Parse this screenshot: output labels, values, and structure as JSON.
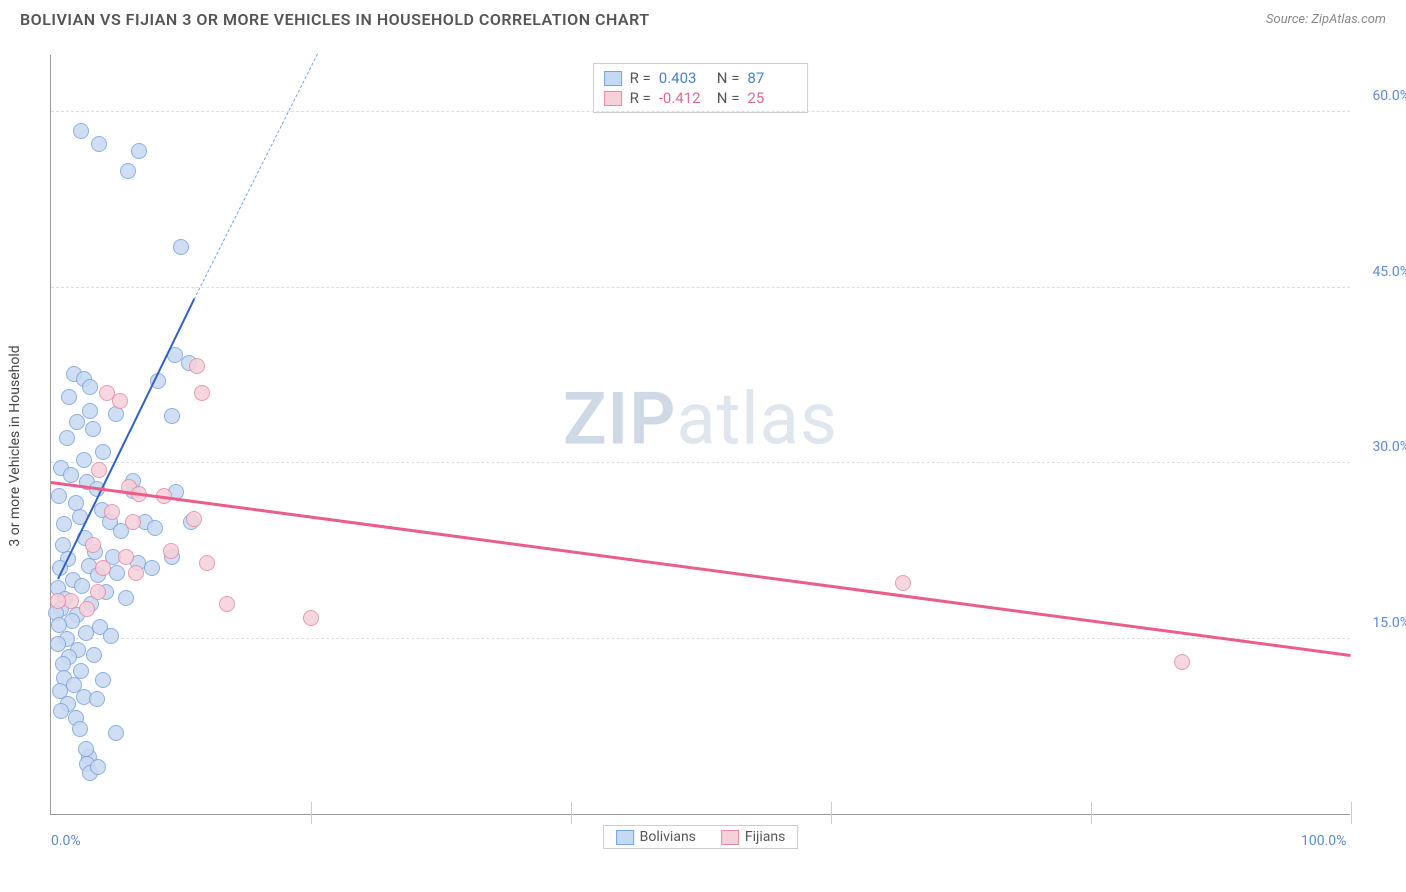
{
  "title": "BOLIVIAN VS FIJIAN 3 OR MORE VEHICLES IN HOUSEHOLD CORRELATION CHART",
  "source": "Source: ZipAtlas.com",
  "ylabel": "3 or more Vehicles in Household",
  "watermark_left": "ZIP",
  "watermark_right": "atlas",
  "chart": {
    "type": "scatter",
    "xlim": [
      0,
      100
    ],
    "ylim": [
      0,
      65
    ],
    "yticks": [
      {
        "v": 15,
        "label": "15.0%"
      },
      {
        "v": 30,
        "label": "30.0%"
      },
      {
        "v": 45,
        "label": "45.0%"
      },
      {
        "v": 60,
        "label": "60.0%"
      }
    ],
    "xticks": [
      {
        "v": 0,
        "label": "0.0%"
      },
      {
        "v": 100,
        "label": "100.0%"
      }
    ],
    "xgrid": [
      20,
      40,
      60,
      80,
      100
    ],
    "background_color": "#ffffff",
    "grid_color": "#dddddd",
    "marker_radius": 8,
    "series": [
      {
        "name": "Bolivians",
        "fill": "#c7d9f2",
        "stroke": "#7aa3de",
        "R": "0.403",
        "N": "87",
        "stat_color": "#4a7fd1",
        "trend": {
          "x1": 0.5,
          "y1": 20,
          "x2": 11,
          "y2": 44,
          "color": "#2f61c4",
          "width": 2
        },
        "trend_dash": {
          "x1": 11,
          "y1": 44,
          "x2": 20.5,
          "y2": 65,
          "color": "#7aa3de"
        },
        "points": [
          [
            2.3,
            58.4
          ],
          [
            3.7,
            57.3
          ],
          [
            6.8,
            56.7
          ],
          [
            5.9,
            55.0
          ],
          [
            10.0,
            48.5
          ],
          [
            9.5,
            39.3
          ],
          [
            10.6,
            38.6
          ],
          [
            8.2,
            37.0
          ],
          [
            1.8,
            37.6
          ],
          [
            2.5,
            37.2
          ],
          [
            1.4,
            35.7
          ],
          [
            3.0,
            36.5
          ],
          [
            9.3,
            34.0
          ],
          [
            3.0,
            34.5
          ],
          [
            5.0,
            34.2
          ],
          [
            2.0,
            33.5
          ],
          [
            3.2,
            32.9
          ],
          [
            1.2,
            32.2
          ],
          [
            4.0,
            31.0
          ],
          [
            2.5,
            30.3
          ],
          [
            0.8,
            29.6
          ],
          [
            1.5,
            29.0
          ],
          [
            2.8,
            28.4
          ],
          [
            3.5,
            27.8
          ],
          [
            6.3,
            27.6
          ],
          [
            0.6,
            27.2
          ],
          [
            1.9,
            26.6
          ],
          [
            3.9,
            26.0
          ],
          [
            2.2,
            25.4
          ],
          [
            4.5,
            25.0
          ],
          [
            1.0,
            24.8
          ],
          [
            5.4,
            24.2
          ],
          [
            2.6,
            23.6
          ],
          [
            0.9,
            23.0
          ],
          [
            3.4,
            22.4
          ],
          [
            4.8,
            22.0
          ],
          [
            1.3,
            21.8
          ],
          [
            2.9,
            21.2
          ],
          [
            6.7,
            21.5
          ],
          [
            0.7,
            21.0
          ],
          [
            3.6,
            20.4
          ],
          [
            5.1,
            20.6
          ],
          [
            1.7,
            20.0
          ],
          [
            2.4,
            19.5
          ],
          [
            0.5,
            19.3
          ],
          [
            4.2,
            19.0
          ],
          [
            1.1,
            18.4
          ],
          [
            3.1,
            18.0
          ],
          [
            5.8,
            18.5
          ],
          [
            0.8,
            17.5
          ],
          [
            2.0,
            17.0
          ],
          [
            0.4,
            17.2
          ],
          [
            1.6,
            16.5
          ],
          [
            3.8,
            16.0
          ],
          [
            0.6,
            16.2
          ],
          [
            2.7,
            15.5
          ],
          [
            1.2,
            15.0
          ],
          [
            4.6,
            15.2
          ],
          [
            0.5,
            14.5
          ],
          [
            2.1,
            14.0
          ],
          [
            1.4,
            13.4
          ],
          [
            3.3,
            13.6
          ],
          [
            0.9,
            12.8
          ],
          [
            2.3,
            12.2
          ],
          [
            1.0,
            11.6
          ],
          [
            1.8,
            11.0
          ],
          [
            0.7,
            10.5
          ],
          [
            2.5,
            10.0
          ],
          [
            1.3,
            9.4
          ],
          [
            3.5,
            9.8
          ],
          [
            0.8,
            8.8
          ],
          [
            1.9,
            8.2
          ],
          [
            2.2,
            7.3
          ],
          [
            2.9,
            4.9
          ],
          [
            2.8,
            4.3
          ],
          [
            5.0,
            6.9
          ],
          [
            2.7,
            5.6
          ],
          [
            7.8,
            21.0
          ],
          [
            6.3,
            28.5
          ],
          [
            7.2,
            25.0
          ],
          [
            9.3,
            22.0
          ],
          [
            8.0,
            24.5
          ],
          [
            9.6,
            27.5
          ],
          [
            10.8,
            25.0
          ],
          [
            4.0,
            11.5
          ],
          [
            3.0,
            3.5
          ],
          [
            3.6,
            4.0
          ]
        ]
      },
      {
        "name": "Fijians",
        "fill": "#f6d1da",
        "stroke": "#e88aa3",
        "R": "-0.412",
        "N": "25",
        "stat_color": "#e26a8c",
        "trend": {
          "x1": 0,
          "y1": 28.3,
          "x2": 100,
          "y2": 13.5,
          "color": "#ea5f87",
          "width": 2.5
        },
        "points": [
          [
            4.3,
            36.0
          ],
          [
            5.3,
            35.3
          ],
          [
            11.2,
            38.3
          ],
          [
            11.6,
            36.0
          ],
          [
            3.7,
            29.4
          ],
          [
            6.0,
            28.0
          ],
          [
            6.8,
            27.4
          ],
          [
            8.7,
            27.2
          ],
          [
            4.7,
            25.8
          ],
          [
            6.3,
            25.0
          ],
          [
            11.0,
            25.2
          ],
          [
            3.2,
            23.0
          ],
          [
            5.8,
            22.0
          ],
          [
            9.2,
            22.5
          ],
          [
            4.0,
            21.0
          ],
          [
            6.5,
            20.6
          ],
          [
            3.6,
            19.0
          ],
          [
            1.5,
            18.2
          ],
          [
            2.8,
            17.5
          ],
          [
            0.5,
            18.2
          ],
          [
            12.0,
            21.5
          ],
          [
            13.5,
            18.0
          ],
          [
            20.0,
            16.8
          ],
          [
            65.5,
            19.8
          ],
          [
            87.0,
            13.0
          ]
        ]
      }
    ]
  },
  "legend": {
    "s1_label": "Bolivians",
    "s2_label": "Fijians"
  }
}
